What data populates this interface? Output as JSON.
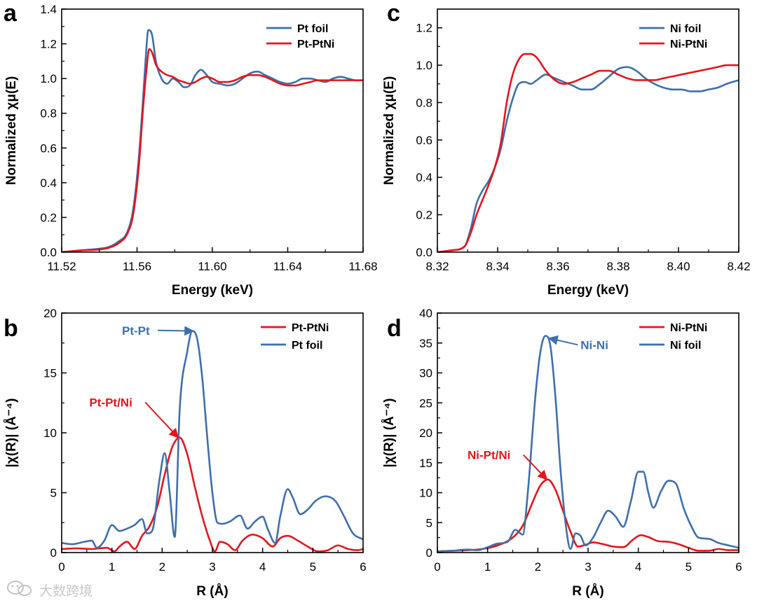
{
  "figure": {
    "colors": {
      "blue": "#3f6fab",
      "red": "#e4161c",
      "axis": "#000000"
    },
    "watermark": {
      "icon": "wechat-logo-icon",
      "text": "大数跨境"
    }
  },
  "chart_data": [
    {
      "panel": "a",
      "type": "line",
      "xlabel": "Energy (keV)",
      "ylabel": "Normalized χμ(E)",
      "xlim": [
        11.52,
        11.68
      ],
      "ylim": [
        0,
        1.4
      ],
      "xticks": [
        11.52,
        11.56,
        11.6,
        11.64,
        11.68
      ],
      "xtick_labels": [
        "11.52",
        "11.56",
        "11.60",
        "11.64",
        "11.68"
      ],
      "yticks": [
        0,
        0.2,
        0.4,
        0.6,
        0.8,
        1.0,
        1.2,
        1.4
      ],
      "ytick_labels": [
        "0.0",
        "0.2",
        "0.4",
        "0.6",
        "0.8",
        "1.0",
        "1.2",
        "1.4"
      ],
      "legend_position": "top-right",
      "legend": [
        "Pt foil",
        "Pt-PtNi"
      ],
      "series": [
        {
          "name": "Pt foil",
          "color": "#3f6fab",
          "x": [
            11.52,
            11.53,
            11.54,
            11.545,
            11.55,
            11.555,
            11.558,
            11.561,
            11.563,
            11.5645,
            11.566,
            11.568,
            11.57,
            11.573,
            11.576,
            11.579,
            11.582,
            11.585,
            11.588,
            11.591,
            11.594,
            11.597,
            11.6,
            11.604,
            11.608,
            11.612,
            11.616,
            11.62,
            11.624,
            11.628,
            11.632,
            11.636,
            11.64,
            11.644,
            11.648,
            11.652,
            11.656,
            11.66,
            11.664,
            11.668,
            11.672,
            11.676,
            11.68
          ],
          "y": [
            0.0,
            0.01,
            0.02,
            0.03,
            0.06,
            0.12,
            0.25,
            0.55,
            0.85,
            1.1,
            1.28,
            1.25,
            1.1,
            1.0,
            0.97,
            1.0,
            0.98,
            0.95,
            0.96,
            1.02,
            1.05,
            1.02,
            0.98,
            0.97,
            0.96,
            0.97,
            1.0,
            1.03,
            1.04,
            1.02,
            1.0,
            0.98,
            0.97,
            0.98,
            1.0,
            1.0,
            0.99,
            0.98,
            1.0,
            1.01,
            1.0,
            0.99,
            0.99
          ]
        },
        {
          "name": "Pt-PtNi",
          "color": "#e4161c",
          "x": [
            11.52,
            11.53,
            11.54,
            11.545,
            11.55,
            11.555,
            11.558,
            11.561,
            11.563,
            11.565,
            11.5665,
            11.568,
            11.57,
            11.573,
            11.576,
            11.579,
            11.582,
            11.585,
            11.588,
            11.591,
            11.594,
            11.597,
            11.6,
            11.604,
            11.608,
            11.612,
            11.616,
            11.62,
            11.624,
            11.628,
            11.632,
            11.636,
            11.64,
            11.644,
            11.648,
            11.652,
            11.656,
            11.66,
            11.664,
            11.668,
            11.672,
            11.676,
            11.68
          ],
          "y": [
            0.0,
            0.01,
            0.015,
            0.025,
            0.05,
            0.11,
            0.22,
            0.5,
            0.8,
            1.05,
            1.17,
            1.15,
            1.08,
            1.04,
            1.02,
            1.01,
            0.99,
            0.98,
            0.97,
            0.98,
            1.0,
            1.01,
            1.0,
            0.98,
            0.98,
            0.99,
            1.01,
            1.02,
            1.02,
            1.01,
            0.99,
            0.97,
            0.96,
            0.96,
            0.97,
            0.98,
            0.99,
            0.99,
            0.99,
            0.99,
            0.99,
            0.99,
            0.99
          ]
        }
      ]
    },
    {
      "panel": "c",
      "type": "line",
      "xlabel": "Energy (keV)",
      "ylabel": "Normalized χμ(E)",
      "xlim": [
        8.32,
        8.42
      ],
      "ylim": [
        0,
        1.3
      ],
      "xticks": [
        8.32,
        8.34,
        8.36,
        8.38,
        8.4,
        8.42
      ],
      "xtick_labels": [
        "8.32",
        "8.34",
        "8.36",
        "8.38",
        "8.40",
        "8.42"
      ],
      "yticks": [
        0,
        0.2,
        0.4,
        0.6,
        0.8,
        1.0,
        1.2
      ],
      "ytick_labels": [
        "0.0",
        "0.2",
        "0.4",
        "0.6",
        "0.8",
        "1.0",
        "1.2"
      ],
      "legend_position": "top-right",
      "legend": [
        "Ni foil",
        "Ni-PtNi"
      ],
      "series": [
        {
          "name": "Ni foil",
          "color": "#3f6fab",
          "x": [
            8.32,
            8.325,
            8.329,
            8.331,
            8.333,
            8.335,
            8.337,
            8.339,
            8.341,
            8.343,
            8.345,
            8.347,
            8.349,
            8.351,
            8.353,
            8.356,
            8.359,
            8.362,
            8.365,
            8.368,
            8.371,
            8.374,
            8.377,
            8.38,
            8.383,
            8.386,
            8.389,
            8.392,
            8.395,
            8.398,
            8.401,
            8.404,
            8.407,
            8.41,
            8.413,
            8.416,
            8.42
          ],
          "y": [
            0.0,
            0.01,
            0.03,
            0.12,
            0.26,
            0.33,
            0.38,
            0.45,
            0.55,
            0.7,
            0.82,
            0.9,
            0.91,
            0.9,
            0.92,
            0.95,
            0.93,
            0.91,
            0.89,
            0.87,
            0.87,
            0.9,
            0.94,
            0.98,
            0.99,
            0.97,
            0.93,
            0.9,
            0.88,
            0.87,
            0.87,
            0.86,
            0.86,
            0.87,
            0.88,
            0.9,
            0.92
          ]
        },
        {
          "name": "Ni-PtNi",
          "color": "#e4161c",
          "x": [
            8.32,
            8.325,
            8.329,
            8.331,
            8.333,
            8.335,
            8.337,
            8.339,
            8.341,
            8.343,
            8.345,
            8.347,
            8.349,
            8.351,
            8.353,
            8.356,
            8.359,
            8.362,
            8.365,
            8.368,
            8.371,
            8.374,
            8.377,
            8.38,
            8.383,
            8.386,
            8.389,
            8.392,
            8.395,
            8.398,
            8.401,
            8.404,
            8.407,
            8.41,
            8.413,
            8.416,
            8.42
          ],
          "y": [
            0.0,
            0.01,
            0.03,
            0.1,
            0.2,
            0.28,
            0.36,
            0.45,
            0.58,
            0.8,
            0.95,
            1.03,
            1.06,
            1.06,
            1.04,
            0.97,
            0.92,
            0.9,
            0.91,
            0.93,
            0.95,
            0.97,
            0.97,
            0.95,
            0.93,
            0.92,
            0.92,
            0.92,
            0.93,
            0.94,
            0.95,
            0.96,
            0.97,
            0.98,
            0.99,
            1.0,
            1.0
          ]
        }
      ]
    },
    {
      "panel": "b",
      "type": "line",
      "xlabel": "R (Å)",
      "ylabel": "|χ(R)| (Å⁻⁴)",
      "xlim": [
        0,
        6
      ],
      "ylim": [
        0,
        20
      ],
      "xticks": [
        0,
        1,
        2,
        3,
        4,
        5,
        6
      ],
      "xtick_labels": [
        "0",
        "1",
        "2",
        "3",
        "4",
        "5",
        "6"
      ],
      "yticks": [
        0,
        5,
        10,
        15,
        20
      ],
      "ytick_labels": [
        "0",
        "5",
        "10",
        "15",
        "20"
      ],
      "legend_position": "top-right",
      "legend": [
        "Pt-PtNi",
        "Pt foil"
      ],
      "annotations": [
        {
          "text": "Pt-Pt",
          "color": "#3f6fab",
          "text_xy": [
            1.2,
            18.2
          ],
          "arrow_to": [
            2.62,
            18.5
          ]
        },
        {
          "text": "Pt-Pt/Ni",
          "color": "#e4161c",
          "text_xy": [
            0.55,
            12.2
          ],
          "arrow_to": [
            2.32,
            9.6
          ]
        }
      ],
      "series": [
        {
          "name": "Pt-PtNi",
          "color": "#e4161c",
          "x": [
            0,
            0.3,
            0.6,
            0.9,
            1.05,
            1.15,
            1.3,
            1.45,
            1.6,
            1.75,
            1.9,
            2.05,
            2.2,
            2.35,
            2.5,
            2.65,
            2.8,
            2.95,
            3.05,
            3.15,
            3.3,
            3.45,
            3.6,
            3.8,
            4.0,
            4.2,
            4.35,
            4.5,
            4.7,
            4.9,
            5.1,
            5.3,
            5.5,
            5.7,
            5.9,
            6.0
          ],
          "y": [
            0.3,
            0.35,
            0.3,
            0.4,
            0.1,
            0.5,
            0.9,
            0.3,
            1.4,
            2.2,
            3.8,
            6.5,
            8.8,
            9.6,
            8.2,
            5.5,
            3.0,
            1.0,
            0.1,
            0.9,
            0.7,
            0.2,
            1.0,
            1.5,
            1.2,
            0.5,
            1.2,
            1.4,
            1.0,
            0.5,
            0.1,
            0.2,
            0.6,
            0.3,
            0.2,
            0.3
          ]
        },
        {
          "name": "Pt foil",
          "color": "#3f6fab",
          "x": [
            0,
            0.2,
            0.45,
            0.6,
            0.7,
            0.85,
            1.0,
            1.15,
            1.3,
            1.45,
            1.6,
            1.7,
            1.8,
            1.95,
            2.05,
            2.15,
            2.25,
            2.35,
            2.5,
            2.6,
            2.7,
            2.8,
            2.9,
            3.0,
            3.1,
            3.2,
            3.35,
            3.55,
            3.7,
            3.85,
            4.0,
            4.1,
            4.25,
            4.35,
            4.5,
            4.6,
            4.75,
            4.9,
            5.05,
            5.25,
            5.45,
            5.6,
            5.8,
            6.0
          ],
          "y": [
            0.8,
            0.7,
            0.9,
            1.0,
            0.4,
            1.0,
            2.3,
            1.8,
            2.0,
            2.3,
            2.8,
            1.6,
            1.8,
            6.2,
            8.3,
            5.0,
            1.3,
            12.0,
            16.8,
            18.5,
            17.8,
            14.5,
            9.5,
            5.0,
            2.5,
            2.4,
            2.6,
            3.1,
            2.0,
            2.6,
            3.0,
            2.0,
            0.8,
            3.0,
            5.3,
            4.6,
            3.2,
            3.6,
            4.3,
            4.7,
            4.3,
            3.2,
            1.6,
            1.1
          ]
        }
      ]
    },
    {
      "panel": "d",
      "type": "line",
      "xlabel": "R (Å)",
      "ylabel": "|χ(R)| (Å⁻⁴)",
      "xlim": [
        0,
        6
      ],
      "ylim": [
        0,
        40
      ],
      "xticks": [
        0,
        1,
        2,
        3,
        4,
        5,
        6
      ],
      "xtick_labels": [
        "0",
        "1",
        "2",
        "3",
        "4",
        "5",
        "6"
      ],
      "yticks": [
        0,
        5,
        10,
        15,
        20,
        25,
        30,
        35,
        40
      ],
      "ytick_labels": [
        "0",
        "5",
        "10",
        "15",
        "20",
        "25",
        "30",
        "35",
        "40"
      ],
      "legend_position": "top-right",
      "legend": [
        "Ni-PtNi",
        "Ni foil"
      ],
      "annotations": [
        {
          "text": "Ni-Ni",
          "color": "#3f6fab",
          "text_xy": [
            2.85,
            34.0
          ],
          "arrow_to": [
            2.22,
            35.8
          ]
        },
        {
          "text": "Ni-Pt/Ni",
          "color": "#e4161c",
          "text_xy": [
            0.6,
            15.6
          ],
          "arrow_to": [
            2.18,
            12.2
          ]
        }
      ],
      "series": [
        {
          "name": "Ni-PtNi",
          "color": "#e4161c",
          "x": [
            0,
            0.3,
            0.6,
            0.9,
            1.2,
            1.5,
            1.7,
            1.9,
            2.05,
            2.2,
            2.35,
            2.5,
            2.65,
            2.8,
            2.95,
            3.1,
            3.3,
            3.5,
            3.7,
            3.9,
            4.05,
            4.2,
            4.4,
            4.6,
            4.8,
            5.0,
            5.2,
            5.4,
            5.6,
            5.8,
            6.0
          ],
          "y": [
            0.2,
            0.3,
            0.4,
            0.6,
            1.2,
            2.5,
            4.5,
            8.5,
            11.2,
            12.2,
            10.5,
            7.0,
            3.5,
            1.0,
            1.3,
            1.7,
            1.4,
            1.0,
            0.9,
            2.2,
            2.9,
            2.6,
            1.9,
            1.8,
            1.4,
            0.8,
            0.3,
            0.3,
            0.6,
            0.4,
            0.4
          ]
        },
        {
          "name": "Ni foil",
          "color": "#3f6fab",
          "x": [
            0,
            0.3,
            0.6,
            0.8,
            1.0,
            1.2,
            1.4,
            1.55,
            1.7,
            1.8,
            1.95,
            2.05,
            2.15,
            2.25,
            2.35,
            2.45,
            2.55,
            2.65,
            2.75,
            2.85,
            2.95,
            3.1,
            3.25,
            3.4,
            3.55,
            3.7,
            3.85,
            4.0,
            4.1,
            4.2,
            4.3,
            4.45,
            4.6,
            4.75,
            4.9,
            5.05,
            5.2,
            5.4,
            5.6,
            5.8,
            6.0
          ],
          "y": [
            0.2,
            0.3,
            0.5,
            0.4,
            0.9,
            1.5,
            1.8,
            3.8,
            3.0,
            10.0,
            26.0,
            33.5,
            36.2,
            34.5,
            26.0,
            14.0,
            5.0,
            0.6,
            3.2,
            2.8,
            1.2,
            2.5,
            5.0,
            7.0,
            6.0,
            4.3,
            8.5,
            13.5,
            13.5,
            10.0,
            7.5,
            10.2,
            12.0,
            11.5,
            7.5,
            4.5,
            2.5,
            2.3,
            1.6,
            1.2,
            0.8
          ]
        }
      ]
    }
  ]
}
